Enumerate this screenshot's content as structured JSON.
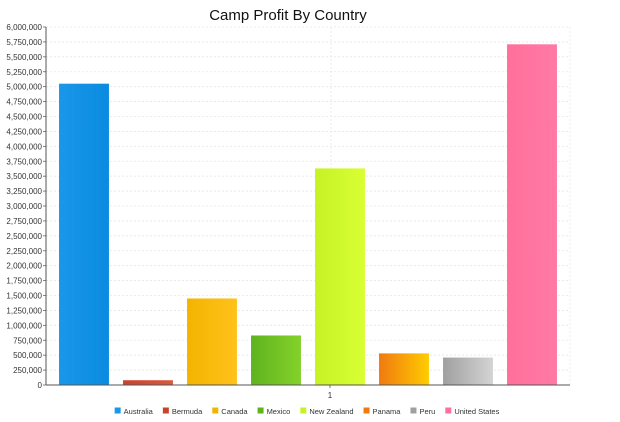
{
  "chart_data": {
    "type": "bar",
    "title": "Camp Profit By Country",
    "xlabel": "",
    "ylabel": "",
    "categories": [
      "1"
    ],
    "ylim": [
      0,
      6000000
    ],
    "y_tick_step": 250000,
    "y_tick_labels": [
      "0",
      "250,000",
      "500,000",
      "750,000",
      "1,000,000",
      "1,250,000",
      "1,500,000",
      "1,750,000",
      "2,000,000",
      "2,250,000",
      "2,500,000",
      "2,750,000",
      "3,000,000",
      "3,250,000",
      "3,500,000",
      "3,750,000",
      "4,000,000",
      "4,250,000",
      "4,500,000",
      "4,750,000",
      "5,000,000",
      "5,250,000",
      "5,500,000",
      "5,750,000",
      "6,000,000"
    ],
    "grid": true,
    "legend_position": "bottom",
    "series": [
      {
        "name": "Australia",
        "values": [
          5050000
        ],
        "color": "#1a97e8",
        "color_light": "#0a8be0"
      },
      {
        "name": "Bermuda",
        "values": [
          80000
        ],
        "color": "#c8432b",
        "color_light": "#d85a3e"
      },
      {
        "name": "Canada",
        "values": [
          1450000
        ],
        "color": "#f3b400",
        "color_light": "#ffc21a"
      },
      {
        "name": "Mexico",
        "values": [
          830000
        ],
        "color": "#5fb31f",
        "color_light": "#84d12a"
      },
      {
        "name": "New Zealand",
        "values": [
          3630000
        ],
        "color": "#c6f226",
        "color_light": "#d9ff33"
      },
      {
        "name": "Panama",
        "values": [
          530000
        ],
        "color": "#f07a10",
        "color_light": "#ffcc00"
      },
      {
        "name": "Peru",
        "values": [
          460000
        ],
        "color": "#a0a0a0",
        "color_light": "#d4d4d4"
      },
      {
        "name": "United States",
        "values": [
          5710000
        ],
        "color": "#ff6f9c",
        "color_light": "#ff7aa5"
      }
    ]
  }
}
